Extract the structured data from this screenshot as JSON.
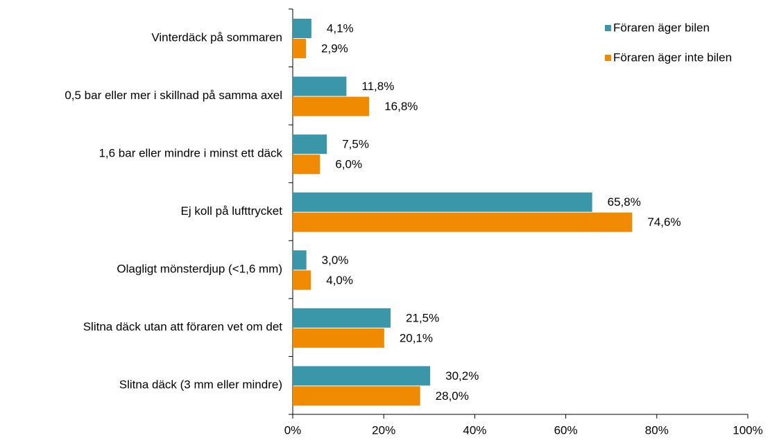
{
  "chart_data": {
    "type": "bar",
    "orientation": "horizontal",
    "categories": [
      "Vinterdäck på sommaren",
      "0,5 bar eller mer i skillnad på samma axel",
      "1,6 bar eller mindre i minst ett däck",
      "Ej koll på lufttrycket",
      "Olagligt mönsterdjup (<1,6 mm)",
      "Slitna däck utan att föraren vet om det",
      "Slitna däck (3 mm eller mindre)"
    ],
    "series": [
      {
        "name": "Föraren äger bilen",
        "color": "#3a97a9",
        "values": [
          4.1,
          11.8,
          7.5,
          65.8,
          3.0,
          21.5,
          30.2
        ],
        "value_labels": [
          "4,1%",
          "11,8%",
          "7,5%",
          "65,8%",
          "3,0%",
          "21,5%",
          "30,2%"
        ]
      },
      {
        "name": "Föraren äger inte bilen",
        "color": "#f08a00",
        "values": [
          2.9,
          16.8,
          6.0,
          74.6,
          4.0,
          20.1,
          28.0
        ],
        "value_labels": [
          "2,9%",
          "16,8%",
          "6,0%",
          "74,6%",
          "4,0%",
          "20,1%",
          "28,0%"
        ]
      }
    ],
    "xlim": [
      0,
      100
    ],
    "xticks": [
      {
        "value": 0,
        "label": "0%"
      },
      {
        "value": 20,
        "label": "20%"
      },
      {
        "value": 40,
        "label": "40%"
      },
      {
        "value": 60,
        "label": "60%"
      },
      {
        "value": 80,
        "label": "80%"
      },
      {
        "value": 100,
        "label": "100%"
      }
    ],
    "grid": false,
    "legend": "top-right"
  }
}
